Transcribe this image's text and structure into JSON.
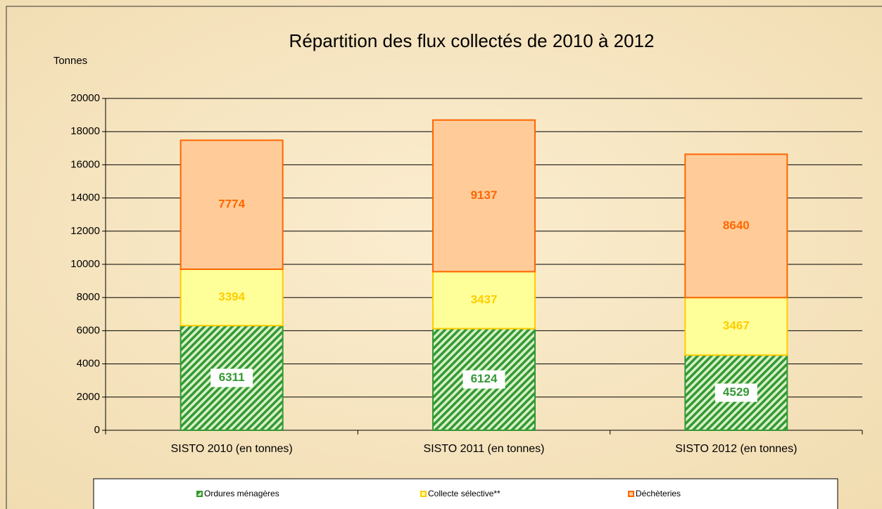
{
  "chart_data": {
    "type": "bar",
    "stacked": true,
    "title": "Répartition des flux collectés de 2010 à 2012",
    "y_label": "Tonnes",
    "categories": [
      "SISTO 2010 (en tonnes)",
      "SISTO 2011 (en tonnes)",
      "SISTO 2012 (en tonnes)"
    ],
    "series": [
      {
        "name": "Ordures ménagères",
        "color": "#339933",
        "values": [
          6311,
          6124,
          4529
        ]
      },
      {
        "name": "Collecte sélective**",
        "color": "#ffcc00",
        "values": [
          3394,
          3437,
          3467
        ]
      },
      {
        "name": "Déchèteries",
        "color": "#ff6600",
        "values": [
          7774,
          9137,
          8640
        ]
      }
    ],
    "ylim": [
      0,
      20000
    ],
    "yticks": [
      0,
      2000,
      4000,
      6000,
      8000,
      10000,
      12000,
      14000,
      16000,
      18000,
      20000
    ],
    "grid": true,
    "legend": "bottom"
  }
}
